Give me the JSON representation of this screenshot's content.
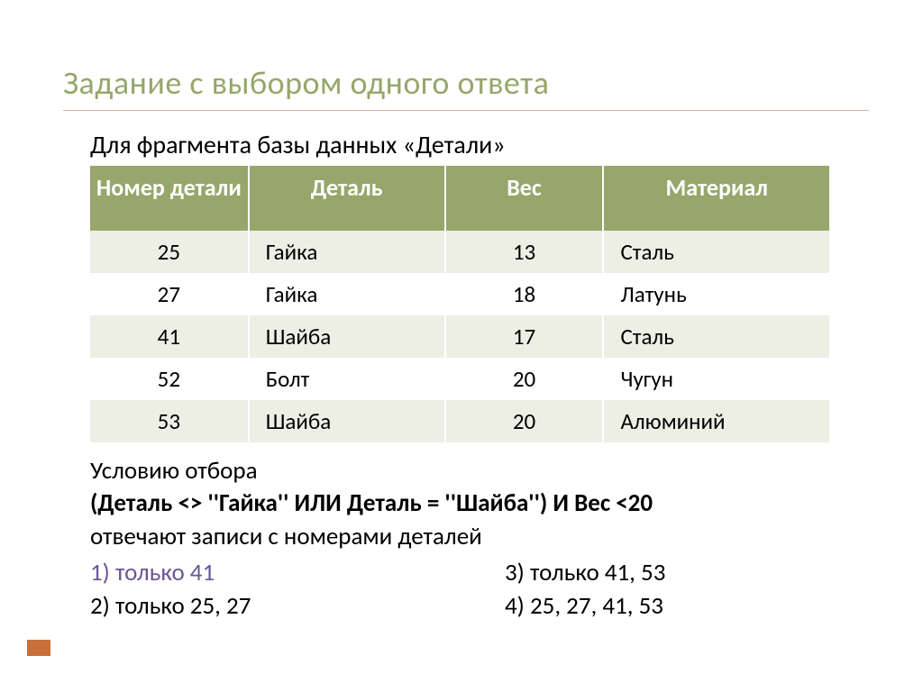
{
  "title": "Задание с выбором одного ответа",
  "subtitle": "Для фрагмента базы данных «Детали»",
  "table": {
    "columns": [
      "Номер детали",
      "Деталь",
      "Вес",
      "Материал"
    ],
    "rows": [
      {
        "num": "25",
        "part": "Гайка",
        "weight": "13",
        "material": "Сталь",
        "part_hl": false,
        "weight_hl": true
      },
      {
        "num": "27",
        "part": "Гайка",
        "weight": "18",
        "material": "Латунь",
        "part_hl": false,
        "weight_hl": true
      },
      {
        "num": "41",
        "part": "Шайба",
        "weight": "17",
        "material": "Сталь",
        "part_hl": true,
        "weight_hl": true
      },
      {
        "num": "52",
        "part": "Болт",
        "weight": "20",
        "material": "Чугун",
        "part_hl": true,
        "weight_hl": false
      },
      {
        "num": "53",
        "part": "Шайба",
        "weight": "20",
        "material": "Алюминий",
        "part_hl": true,
        "weight_hl": false
      }
    ],
    "header_bg": "#97a66a",
    "header_fg": "#ffffff",
    "row_even_bg": "#edeee4",
    "row_odd_bg": "#ffffff",
    "highlight_color": "#6a5694"
  },
  "condition": {
    "line1": "Условию отбора",
    "line2": "(Деталь <> ''Гайка'' ИЛИ Деталь = ''Шайба'') И Вес <20",
    "line3": "отвечают записи с номерами деталей"
  },
  "options": {
    "o1": "1) только 41",
    "o2": "2) только 25, 27",
    "o3": "3) только 41, 53",
    "o4": "4) 25, 27, 41, 53"
  },
  "colors": {
    "title": "#97a66a",
    "rule": "#c9b899",
    "accent_box": "#c86f3a",
    "option1": "#6a5694"
  }
}
